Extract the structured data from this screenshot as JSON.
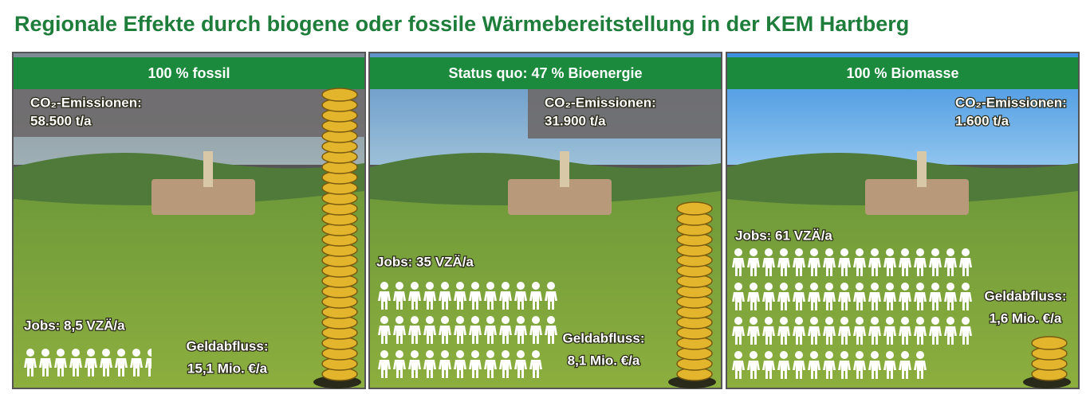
{
  "title": "Regionale Effekte durch biogene oder fossile Wärmebereitstellung in der KEM Hartberg",
  "panels": [
    {
      "header": "100 % fossil",
      "co2_label": "CO₂-Emissionen:",
      "co2_value": "58.500 t/a",
      "jobs_label": "Jobs: 8,5 VZÄ/a",
      "jobs": 8.5,
      "money_label": "Geldabfluss:",
      "money_value": "15,1 Mio. €/a"
    },
    {
      "header": "Status quo: 47 % Bioenergie",
      "co2_label": "CO₂-Emissionen:",
      "co2_value": "31.900 t/a",
      "jobs_label": "Jobs: 35 VZÄ/a",
      "jobs": 35,
      "money_label": "Geldabfluss:",
      "money_value": "8,1 Mio. €/a"
    },
    {
      "header": "100 % Biomasse",
      "co2_label": "CO₂-Emissionen:",
      "co2_value": "1.600 t/a",
      "jobs_label": "Jobs: 61 VZÄ/a",
      "jobs": 61,
      "money_label": "Geldabfluss:",
      "money_value": "1,6 Mio. €/a"
    }
  ]
}
